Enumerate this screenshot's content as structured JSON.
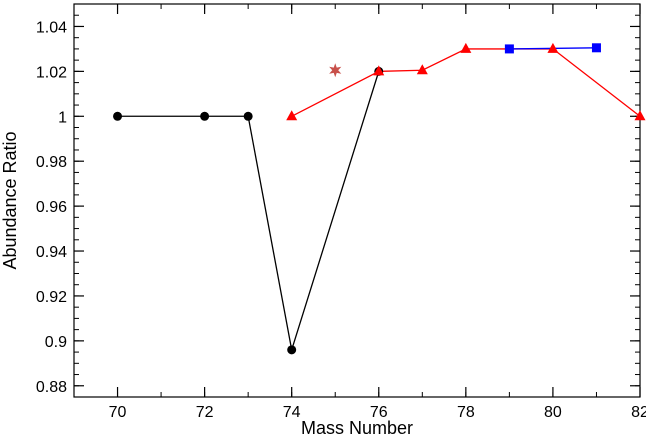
{
  "chart_data": {
    "type": "scatter",
    "title": "",
    "xlabel": "Mass Number",
    "ylabel": "Abundance Ratio",
    "xlim": [
      69,
      82
    ],
    "ylim": [
      0.875,
      1.05
    ],
    "x_ticks": [
      70,
      72,
      74,
      76,
      78,
      80,
      82
    ],
    "x_tick_labels": [
      "70",
      "72",
      "74",
      "76",
      "78",
      "80",
      "82"
    ],
    "y_ticks": [
      0.88,
      0.9,
      0.92,
      0.94,
      0.96,
      0.98,
      1.0,
      1.02,
      1.04
    ],
    "y_tick_labels": [
      "0.88",
      "0.9",
      "0.92",
      "0.94",
      "0.96",
      "0.98",
      "1",
      "1.02",
      "1.04"
    ],
    "grid": false,
    "legend": "none",
    "series": [
      {
        "marker": "circle",
        "line": true,
        "color": "#000000",
        "points": [
          {
            "x": 70,
            "y": 1.0
          },
          {
            "x": 72,
            "y": 1.0
          },
          {
            "x": 73,
            "y": 1.0
          },
          {
            "x": 74,
            "y": 0.896
          },
          {
            "x": 76,
            "y": 1.02
          }
        ]
      },
      {
        "marker": "triangle",
        "line": true,
        "color": "#ff0000",
        "points": [
          {
            "x": 74,
            "y": 1.0
          },
          {
            "x": 76,
            "y": 1.02
          },
          {
            "x": 77,
            "y": 1.0205
          },
          {
            "x": 78,
            "y": 1.03
          },
          {
            "x": 80,
            "y": 1.03
          },
          {
            "x": 82,
            "y": 1.0
          }
        ]
      },
      {
        "marker": "square",
        "line": true,
        "color": "#0000ff",
        "points": [
          {
            "x": 79,
            "y": 1.03
          },
          {
            "x": 81,
            "y": 1.0305
          }
        ]
      },
      {
        "marker": "star",
        "line": false,
        "color": "#c8504a",
        "points": [
          {
            "x": 75,
            "y": 1.0205
          }
        ]
      }
    ]
  }
}
